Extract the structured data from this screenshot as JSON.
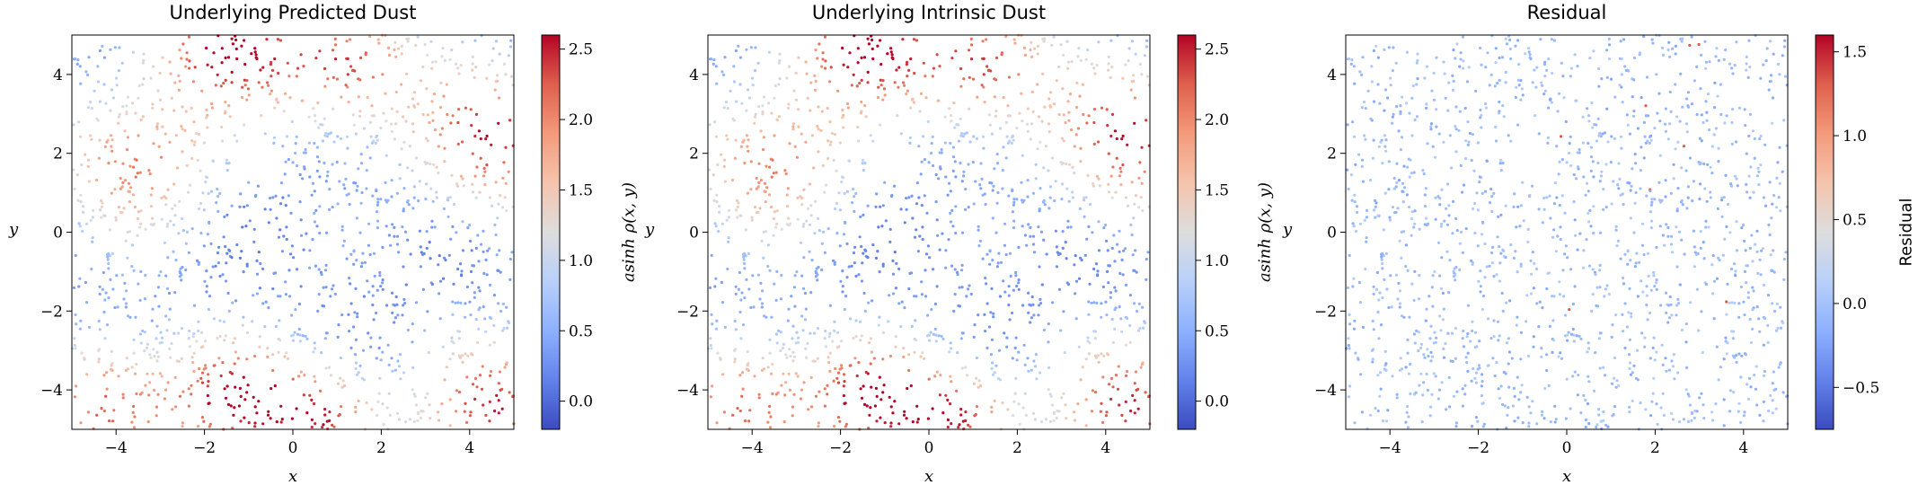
{
  "chart_data": [
    {
      "type": "scatter",
      "title": "Underlying Predicted Dust",
      "xlabel": "x",
      "ylabel": "y",
      "xlim": [
        -5,
        5
      ],
      "ylim": [
        -5,
        5
      ],
      "xticks": [
        "−4",
        "−2",
        "0",
        "2",
        "4"
      ],
      "yticks": [
        "−4",
        "−2",
        "0",
        "2",
        "4"
      ],
      "colorbar": {
        "label": "asinh ρ(x, y)",
        "range": [
          -0.2,
          2.6
        ],
        "ticks": [
          "0.0",
          "0.5",
          "1.0",
          "1.5",
          "2.0",
          "2.5"
        ],
        "colormap": "coolwarm"
      },
      "point_count_estimate": 1500,
      "field_description": "high values (red) near top-center, upper-right, lower-left and lower-right corners; low values (blue) in center and lower-middle"
    },
    {
      "type": "scatter",
      "title": "Underlying Intrinsic Dust",
      "xlabel": "x",
      "ylabel": "y",
      "xlim": [
        -5,
        5
      ],
      "ylim": [
        -5,
        5
      ],
      "xticks": [
        "−4",
        "−2",
        "0",
        "2",
        "4"
      ],
      "yticks": [
        "−4",
        "−2",
        "0",
        "2",
        "4"
      ],
      "colorbar": {
        "label": "asinh ρ(x, y)",
        "range": [
          -0.2,
          2.6
        ],
        "ticks": [
          "0.0",
          "0.5",
          "1.0",
          "1.5",
          "2.0",
          "2.5"
        ],
        "colormap": "coolwarm"
      },
      "point_count_estimate": 1500
    },
    {
      "type": "scatter",
      "title": "Residual",
      "xlabel": "x",
      "ylabel": "y",
      "xlim": [
        -5,
        5
      ],
      "ylim": [
        -5,
        5
      ],
      "xticks": [
        "−4",
        "−2",
        "0",
        "2",
        "4"
      ],
      "yticks": [
        "−4",
        "−2",
        "0",
        "2",
        "4"
      ],
      "colorbar": {
        "label": "Residual",
        "range": [
          -0.75,
          1.6
        ],
        "ticks": [
          "−0.5",
          "0.0",
          "0.5",
          "1.0",
          "1.5"
        ],
        "colormap": "coolwarm"
      },
      "point_count_estimate": 1500,
      "typical_value": -0.05
    }
  ]
}
